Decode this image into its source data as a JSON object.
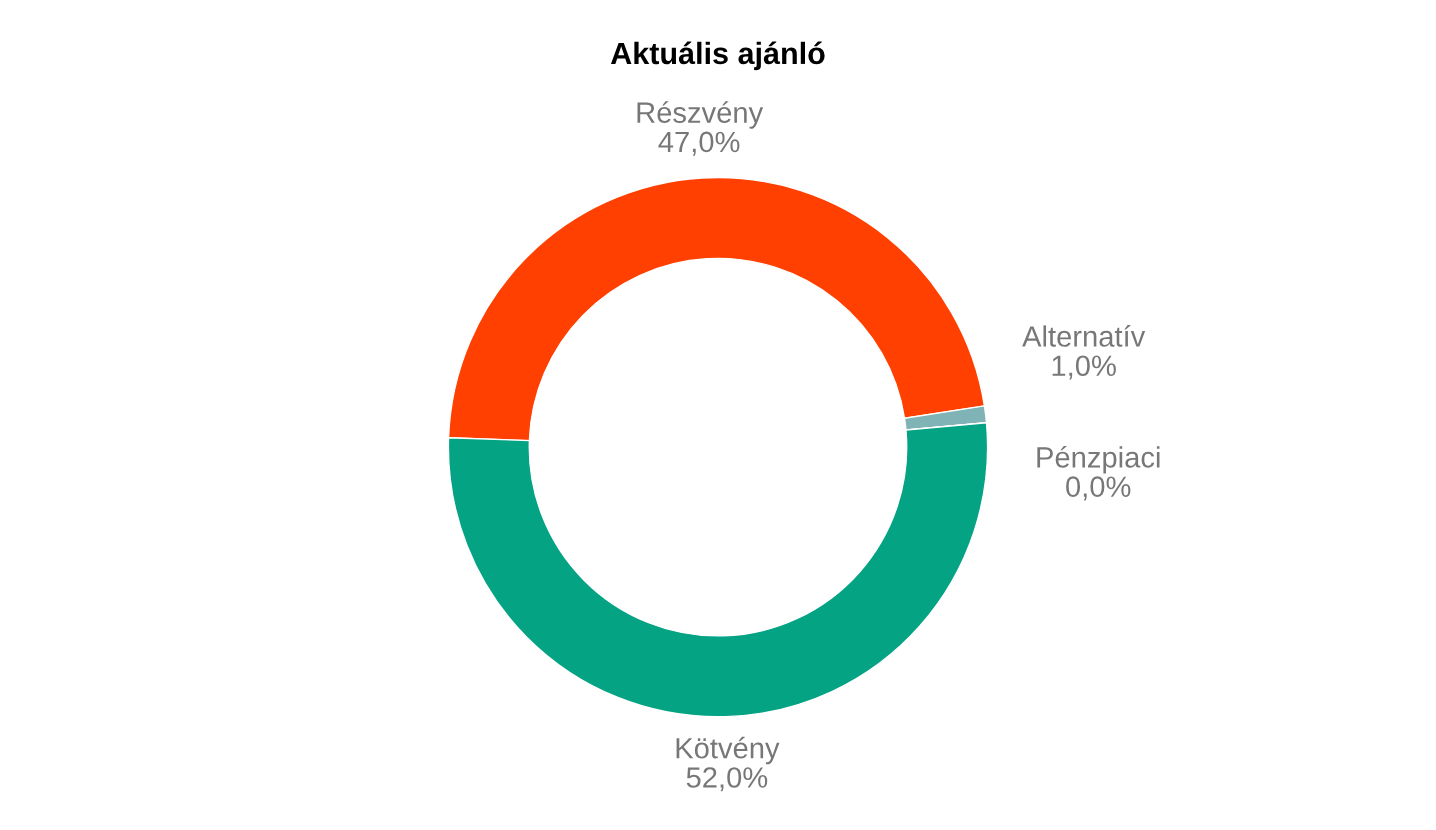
{
  "chart_data": {
    "type": "donut",
    "title": "Aktuális ajánló",
    "categories": [
      "Részvény",
      "Alternatív",
      "Pénzpiaci",
      "Kötvény"
    ],
    "values": [
      47.0,
      1.0,
      0.0,
      52.0
    ],
    "colors": [
      "#ff4000",
      "#7fb3b5",
      "#c8c8c8",
      "#04a384"
    ],
    "value_labels": [
      "47,0%",
      "1,0%",
      "0,0%",
      "52,0%"
    ],
    "legend": false
  }
}
